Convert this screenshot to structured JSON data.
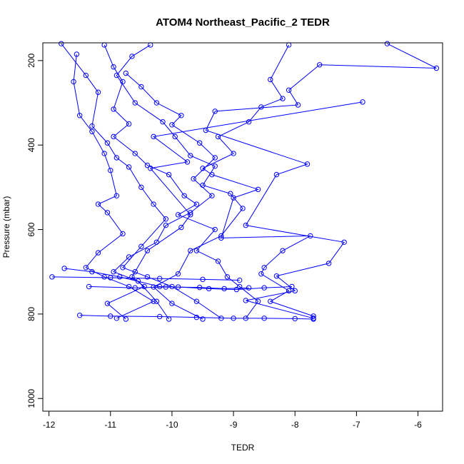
{
  "chart_data": {
    "type": "line",
    "title": "ATOM4 Northeast_Pacific_2 TEDR",
    "xlabel": "TEDR",
    "ylabel": "Pressure (mbar)",
    "xlim": [
      -12.1,
      -5.6
    ],
    "ylim": [
      1030,
      158
    ],
    "y_reversed": true,
    "x_ticks": [
      -12,
      -11,
      -10,
      -9,
      -8,
      -7,
      -6
    ],
    "y_ticks": [
      200,
      400,
      600,
      800,
      1000
    ],
    "grid": false,
    "color": "#0000ff",
    "series": [
      {
        "points": [
          [
            -11.8,
            160
          ],
          [
            -11.4,
            235
          ],
          [
            -11.2,
            275
          ],
          [
            -11.3,
            355
          ],
          [
            -11.05,
            395
          ],
          [
            -10.9,
            430
          ],
          [
            -10.7,
            452
          ],
          [
            -10.5,
            500
          ],
          [
            -10.3,
            540
          ],
          [
            -10.1,
            575
          ],
          [
            -10.5,
            640
          ],
          [
            -10.8,
            690
          ],
          [
            -10.4,
            712
          ],
          [
            -10.0,
            735
          ],
          [
            -9.6,
            770
          ],
          [
            -9.2,
            810
          ]
        ]
      },
      {
        "points": [
          [
            -11.55,
            185
          ],
          [
            -11.6,
            250
          ],
          [
            -11.5,
            330
          ],
          [
            -11.3,
            368
          ],
          [
            -11.1,
            420
          ],
          [
            -11.0,
            460
          ],
          [
            -10.9,
            520
          ],
          [
            -11.2,
            540
          ],
          [
            -11.05,
            560
          ],
          [
            -10.8,
            610
          ],
          [
            -11.2,
            655
          ],
          [
            -11.4,
            690
          ],
          [
            -11.1,
            712
          ],
          [
            -10.7,
            735
          ],
          [
            -10.3,
            770
          ],
          [
            -10.9,
            810
          ]
        ]
      },
      {
        "points": [
          [
            -11.1,
            163
          ],
          [
            -10.95,
            215
          ],
          [
            -10.8,
            250
          ],
          [
            -10.95,
            315
          ],
          [
            -10.7,
            350
          ],
          [
            -10.95,
            380
          ],
          [
            -10.6,
            420
          ],
          [
            -10.4,
            448
          ],
          [
            -10.05,
            470
          ],
          [
            -9.8,
            520
          ],
          [
            -9.6,
            540
          ],
          [
            -9.9,
            565
          ],
          [
            -9.3,
            600
          ],
          [
            -9.6,
            650
          ],
          [
            -9.25,
            675
          ],
          [
            -9.1,
            712
          ],
          [
            -8.9,
            735
          ],
          [
            -8.6,
            770
          ],
          [
            -8.8,
            810
          ]
        ]
      },
      {
        "points": [
          [
            -10.35,
            163
          ],
          [
            -10.65,
            190
          ],
          [
            -10.9,
            235
          ],
          [
            -10.6,
            300
          ],
          [
            -10.15,
            345
          ],
          [
            -9.95,
            380
          ],
          [
            -9.7,
            425
          ],
          [
            -9.3,
            450
          ],
          [
            -9.5,
            495
          ],
          [
            -9.05,
            515
          ],
          [
            -8.85,
            550
          ],
          [
            -9.2,
            615
          ],
          [
            -9.7,
            650
          ],
          [
            -9.9,
            705
          ],
          [
            -10.3,
            736
          ],
          [
            -10.0,
            775
          ],
          [
            -9.5,
            812
          ]
        ]
      },
      {
        "points": [
          [
            -8.1,
            163
          ],
          [
            -8.4,
            245
          ],
          [
            -8.2,
            290
          ],
          [
            -8.55,
            310
          ],
          [
            -8.75,
            345
          ],
          [
            -9.25,
            380
          ],
          [
            -9.0,
            420
          ],
          [
            -9.5,
            455
          ],
          [
            -9.35,
            470
          ],
          [
            -8.6,
            505
          ],
          [
            -9.0,
            525
          ],
          [
            -9.2,
            620
          ],
          [
            -7.75,
            615
          ],
          [
            -8.2,
            650
          ],
          [
            -8.5,
            690
          ],
          [
            -8.55,
            705
          ],
          [
            -8.1,
            745
          ],
          [
            -8.4,
            770
          ],
          [
            -7.7,
            805
          ]
        ]
      },
      {
        "points": [
          [
            -6.5,
            160
          ],
          [
            -5.7,
            218
          ],
          [
            -7.6,
            210
          ],
          [
            -8.1,
            270
          ],
          [
            -7.95,
            305
          ],
          [
            -9.3,
            320
          ],
          [
            -9.45,
            365
          ],
          [
            -7.8,
            445
          ],
          [
            -8.3,
            470
          ],
          [
            -8.8,
            590
          ],
          [
            -7.2,
            630
          ],
          [
            -7.45,
            680
          ],
          [
            -8.3,
            710
          ],
          [
            -8.0,
            745
          ],
          [
            -8.8,
            768
          ],
          [
            -7.7,
            810
          ]
        ]
      },
      {
        "points": [
          [
            -6.9,
            298
          ],
          [
            -10.3,
            380
          ],
          [
            -9.75,
            440
          ],
          [
            -10.35,
            455
          ],
          [
            -9.7,
            565
          ],
          [
            -9.85,
            595
          ],
          [
            -10.4,
            650
          ],
          [
            -10.6,
            700
          ],
          [
            -10.65,
            712
          ],
          [
            -10.45,
            735
          ],
          [
            -11.05,
            775
          ],
          [
            -10.75,
            812
          ]
        ]
      },
      {
        "points": [
          [
            -11.75,
            692
          ],
          [
            -11.3,
            700
          ],
          [
            -10.85,
            712
          ],
          [
            -10.2,
            735
          ],
          [
            -9.9,
            736
          ],
          [
            -9.4,
            740
          ],
          [
            -8.95,
            742
          ],
          [
            -8.5,
            738
          ],
          [
            -8.05,
            735
          ]
        ]
      },
      {
        "points": [
          [
            -11.5,
            803
          ],
          [
            -11.0,
            805
          ],
          [
            -10.2,
            806
          ],
          [
            -9.6,
            808
          ],
          [
            -9.0,
            810
          ],
          [
            -8.5,
            810
          ],
          [
            -8.0,
            811
          ],
          [
            -7.7,
            812
          ]
        ]
      },
      {
        "points": [
          [
            -11.35,
            735
          ],
          [
            -10.6,
            738
          ],
          [
            -10.1,
            736
          ],
          [
            -9.55,
            737
          ],
          [
            -9.15,
            740
          ],
          [
            -8.75,
            738
          ]
        ]
      },
      {
        "points": [
          [
            -10.75,
            230
          ],
          [
            -10.5,
            262
          ],
          [
            -10.25,
            300
          ],
          [
            -9.85,
            330
          ],
          [
            -10.0,
            352
          ],
          [
            -9.55,
            395
          ],
          [
            -9.3,
            430
          ],
          [
            -9.65,
            480
          ],
          [
            -9.35,
            520
          ],
          [
            -9.7,
            560
          ],
          [
            -10.1,
            590
          ],
          [
            -10.25,
            630
          ],
          [
            -10.7,
            665
          ],
          [
            -10.95,
            700
          ],
          [
            -10.55,
            722
          ],
          [
            -10.25,
            770
          ],
          [
            -10.05,
            812
          ]
        ]
      },
      {
        "points": [
          [
            -11.95,
            712
          ],
          [
            -11.0,
            714
          ],
          [
            -10.2,
            716
          ],
          [
            -9.5,
            718
          ],
          [
            -8.9,
            720
          ]
        ]
      }
    ]
  }
}
